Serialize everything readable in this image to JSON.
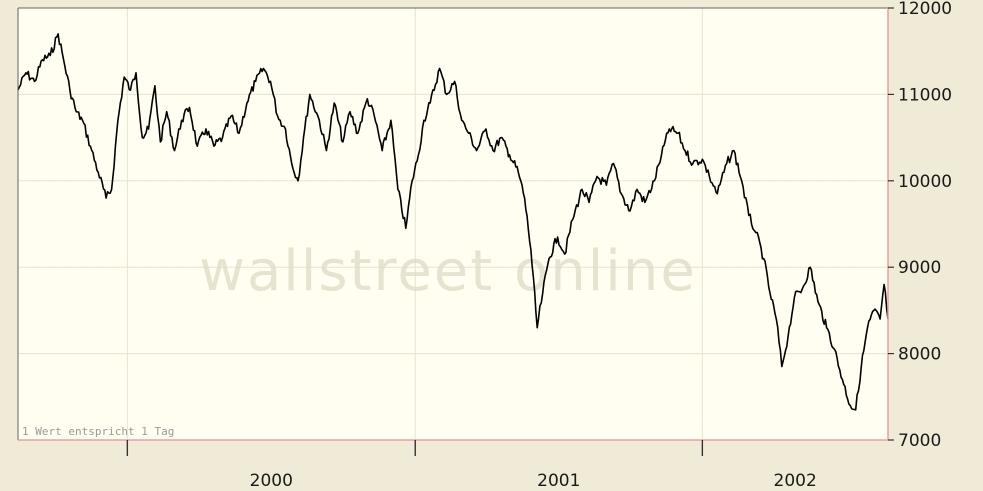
{
  "chart_data": {
    "type": "line",
    "title": "",
    "xlabel": "",
    "ylabel": "",
    "x_tick_labels": [
      "2000",
      "2001",
      "2002"
    ],
    "y_ticks": [
      7000,
      8000,
      9000,
      10000,
      11000,
      12000
    ],
    "y_tick_labels": [
      "7000",
      "8000",
      "9000",
      "10000",
      "11000",
      "12000"
    ],
    "ylim": [
      7000,
      12000
    ],
    "x_range": [
      "1999-08-15",
      "2002-08-25"
    ],
    "grid": true,
    "y_axis_side": "right",
    "note": "1 Wert entspricht 1 Tag",
    "watermark": "wallstreet online",
    "line_color": "#000000",
    "plot_background": "#fffef0",
    "series": [
      {
        "points": [
          [
            "1999-08-15",
            11050
          ],
          [
            "1999-08-25",
            11250
          ],
          [
            "1999-09-05",
            11150
          ],
          [
            "1999-09-15",
            11400
          ],
          [
            "1999-09-25",
            11450
          ],
          [
            "1999-10-05",
            11700
          ],
          [
            "1999-10-12",
            11400
          ],
          [
            "1999-10-20",
            11050
          ],
          [
            "1999-10-28",
            10800
          ],
          [
            "1999-11-05",
            10700
          ],
          [
            "1999-11-15",
            10400
          ],
          [
            "1999-11-25",
            10100
          ],
          [
            "1999-12-05",
            9800
          ],
          [
            "1999-12-12",
            9900
          ],
          [
            "1999-12-20",
            10700
          ],
          [
            "1999-12-28",
            11200
          ],
          [
            "2000-01-05",
            11050
          ],
          [
            "2000-01-12",
            11250
          ],
          [
            "2000-01-20",
            10500
          ],
          [
            "2000-01-28",
            10600
          ],
          [
            "2000-02-05",
            11100
          ],
          [
            "2000-02-12",
            10450
          ],
          [
            "2000-02-20",
            10800
          ],
          [
            "2000-03-01",
            10350
          ],
          [
            "2000-03-10",
            10700
          ],
          [
            "2000-03-20",
            10850
          ],
          [
            "2000-03-30",
            10400
          ],
          [
            "2000-04-10",
            10600
          ],
          [
            "2000-04-20",
            10400
          ],
          [
            "2000-05-01",
            10500
          ],
          [
            "2000-05-12",
            10750
          ],
          [
            "2000-05-22",
            10550
          ],
          [
            "2000-06-01",
            10900
          ],
          [
            "2000-06-12",
            11150
          ],
          [
            "2000-06-22",
            11300
          ],
          [
            "2000-07-01",
            11150
          ],
          [
            "2000-07-10",
            10750
          ],
          [
            "2000-07-20",
            10600
          ],
          [
            "2000-07-28",
            10200
          ],
          [
            "2000-08-05",
            10000
          ],
          [
            "2000-08-12",
            10500
          ],
          [
            "2000-08-20",
            11000
          ],
          [
            "2000-09-01",
            10700
          ],
          [
            "2000-09-10",
            10350
          ],
          [
            "2000-09-20",
            10900
          ],
          [
            "2000-10-01",
            10450
          ],
          [
            "2000-10-10",
            10800
          ],
          [
            "2000-10-20",
            10550
          ],
          [
            "2000-11-01",
            10950
          ],
          [
            "2000-11-10",
            10750
          ],
          [
            "2000-11-20",
            10350
          ],
          [
            "2000-12-01",
            10700
          ],
          [
            "2000-12-10",
            9900
          ],
          [
            "2000-12-20",
            9450
          ],
          [
            "2000-12-28",
            10000
          ],
          [
            "2001-01-05",
            10300
          ],
          [
            "2001-01-12",
            10700
          ],
          [
            "2001-01-20",
            10900
          ],
          [
            "2001-02-01",
            11300
          ],
          [
            "2001-02-10",
            11000
          ],
          [
            "2001-02-20",
            11150
          ],
          [
            "2001-03-01",
            10700
          ],
          [
            "2001-03-10",
            10550
          ],
          [
            "2001-03-20",
            10350
          ],
          [
            "2001-04-01",
            10600
          ],
          [
            "2001-04-10",
            10350
          ],
          [
            "2001-04-20",
            10500
          ],
          [
            "2001-05-01",
            10300
          ],
          [
            "2001-05-12",
            10100
          ],
          [
            "2001-05-20",
            9800
          ],
          [
            "2001-05-28",
            9200
          ],
          [
            "2001-06-05",
            8300
          ],
          [
            "2001-06-12",
            8700
          ],
          [
            "2001-06-20",
            9100
          ],
          [
            "2001-07-01",
            9350
          ],
          [
            "2001-07-10",
            9150
          ],
          [
            "2001-07-20",
            9550
          ],
          [
            "2001-08-01",
            9900
          ],
          [
            "2001-08-10",
            9750
          ],
          [
            "2001-08-20",
            10050
          ],
          [
            "2001-09-01",
            9950
          ],
          [
            "2001-09-10",
            10200
          ],
          [
            "2001-09-20",
            9850
          ],
          [
            "2001-10-01",
            9650
          ],
          [
            "2001-10-10",
            9900
          ],
          [
            "2001-10-20",
            9750
          ],
          [
            "2001-11-01",
            10000
          ],
          [
            "2001-11-10",
            10300
          ],
          [
            "2001-11-20",
            10600
          ],
          [
            "2001-12-01",
            10550
          ],
          [
            "2001-12-10",
            10350
          ],
          [
            "2001-12-20",
            10200
          ],
          [
            "2002-01-01",
            10250
          ],
          [
            "2002-01-10",
            10050
          ],
          [
            "2002-01-20",
            9850
          ],
          [
            "2002-02-01",
            10200
          ],
          [
            "2002-02-10",
            10350
          ],
          [
            "2002-02-20",
            10000
          ],
          [
            "2002-03-01",
            9600
          ],
          [
            "2002-03-10",
            9400
          ],
          [
            "2002-03-20",
            9100
          ],
          [
            "2002-03-28",
            8700
          ],
          [
            "2002-04-05",
            8400
          ],
          [
            "2002-04-12",
            7850
          ],
          [
            "2002-04-20",
            8200
          ],
          [
            "2002-04-28",
            8650
          ],
          [
            "2002-05-08",
            8750
          ],
          [
            "2002-05-18",
            9000
          ],
          [
            "2002-05-28",
            8600
          ],
          [
            "2002-06-08",
            8300
          ],
          [
            "2002-06-18",
            8050
          ],
          [
            "2002-06-28",
            7700
          ],
          [
            "2002-07-08",
            7400
          ],
          [
            "2002-07-15",
            7350
          ],
          [
            "2002-07-22",
            7850
          ],
          [
            "2002-07-30",
            8300
          ],
          [
            "2002-08-07",
            8500
          ],
          [
            "2002-08-15",
            8400
          ],
          [
            "2002-08-20",
            8800
          ],
          [
            "2002-08-25",
            8400
          ]
        ]
      }
    ]
  }
}
